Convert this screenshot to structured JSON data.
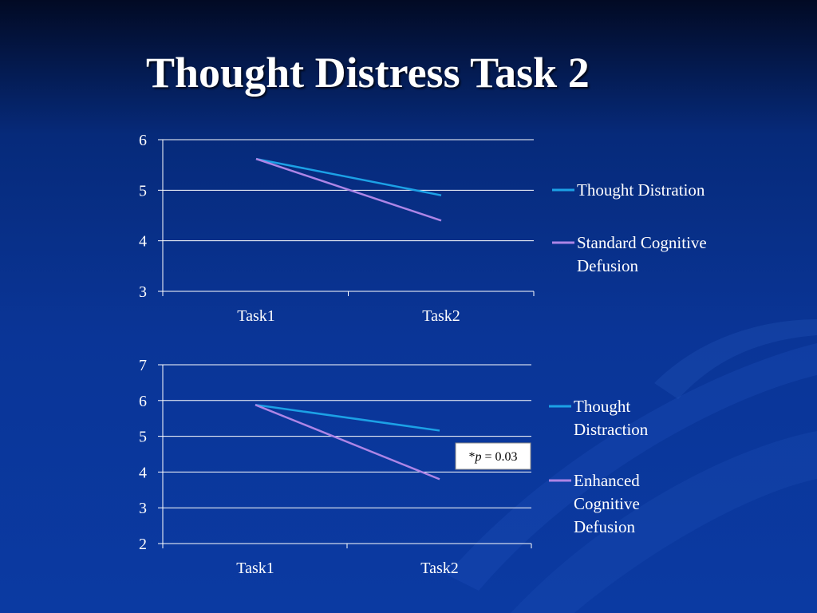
{
  "slide": {
    "title": "Thought Distress Task 2"
  },
  "colors": {
    "grid": "#ffffff",
    "series_blue": "#1ca1e6",
    "series_purple": "#ad85e6"
  },
  "chart_data": [
    {
      "type": "line",
      "title": "",
      "xlabel": "",
      "ylabel": "",
      "categories": [
        "Task1",
        "Task2"
      ],
      "ylim": [
        3,
        6
      ],
      "yticks": [
        "3",
        "4",
        "5",
        "6"
      ],
      "grid": true,
      "legend_position": "right",
      "series": [
        {
          "name": "Thought Distration",
          "legend_lines": [
            "Thought Distration"
          ],
          "values": [
            5.62,
            4.9
          ],
          "color": "#1ca1e6"
        },
        {
          "name": "Standard Cognitive Defusion",
          "legend_lines": [
            "Standard Cognitive",
            "Defusion"
          ],
          "values": [
            5.62,
            4.4
          ],
          "color": "#ad85e6"
        }
      ]
    },
    {
      "type": "line",
      "title": "",
      "xlabel": "",
      "ylabel": "",
      "categories": [
        "Task1",
        "Task2"
      ],
      "ylim": [
        2,
        7
      ],
      "yticks": [
        "2",
        "3",
        "4",
        "5",
        "6",
        "7"
      ],
      "grid": true,
      "legend_position": "right",
      "annotation": {
        "prefix": "*",
        "variable": "p",
        "rest": " = 0.03"
      },
      "series": [
        {
          "name": "Thought Distraction",
          "legend_lines": [
            "Thought",
            "Distraction"
          ],
          "values": [
            5.88,
            5.16
          ],
          "color": "#1ca1e6"
        },
        {
          "name": "Enhanced Cognitive Defusion",
          "legend_lines": [
            "Enhanced",
            "Cognitive",
            "Defusion"
          ],
          "values": [
            5.88,
            3.8
          ],
          "color": "#ad85e6"
        }
      ]
    }
  ]
}
